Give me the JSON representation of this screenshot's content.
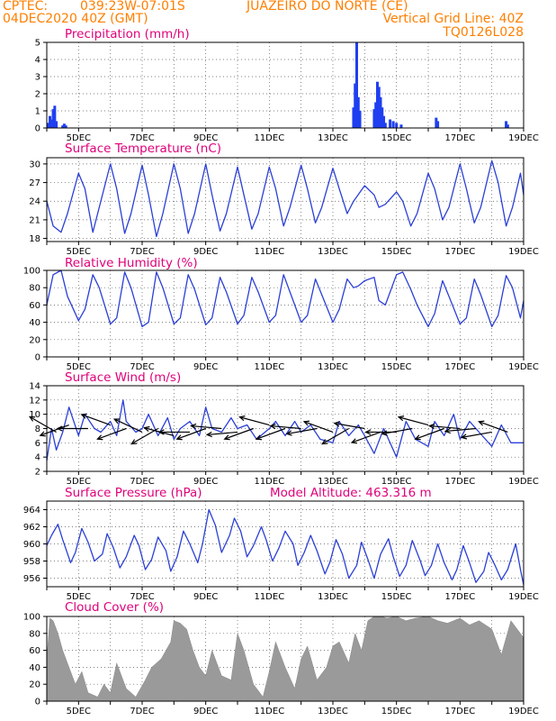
{
  "header": {
    "source": "CPTEC:",
    "coords": "039:23W-07:01S",
    "location": "JUAZEIRO DO NORTE (CE)",
    "date": "04DEC2020 40Z (GMT)",
    "grid_note": "Vertical Grid Line: 40Z",
    "code": "TQ0126L028"
  },
  "colors": {
    "header": "#ff7f00",
    "title": "#e0007a",
    "line": "#2b3fd6",
    "bar": "#1f3ff0",
    "cloud": "#9a9a9a",
    "arrow": "#000000"
  },
  "chart_data": [
    {
      "type": "bar",
      "title": "Precipitation (mm/h)",
      "xlim": [
        4,
        19
      ],
      "ylim": [
        0,
        5
      ],
      "yticks": [
        0,
        1,
        2,
        3,
        4,
        5
      ],
      "xtick_positions": [
        5,
        7,
        9,
        11,
        13,
        15,
        17,
        19
      ],
      "xticks": [
        "5DEC",
        "7DEC",
        "9DEC",
        "11DEC",
        "13DEC",
        "15DEC",
        "17DEC",
        "19DEC"
      ],
      "x": [
        4.05,
        4.1,
        4.15,
        4.2,
        4.25,
        4.3,
        4.5,
        4.55,
        4.6,
        13.65,
        13.7,
        13.75,
        13.8,
        13.85,
        14.3,
        14.35,
        14.4,
        14.45,
        14.5,
        14.55,
        14.6,
        14.65,
        14.8,
        14.9,
        15.0,
        15.15,
        16.25,
        16.3,
        18.45,
        18.5
      ],
      "values": [
        0.3,
        0.7,
        0.5,
        1.1,
        1.3,
        0.4,
        0.15,
        0.25,
        0.15,
        1.2,
        2.6,
        5.0,
        1.8,
        1.0,
        1.1,
        1.5,
        2.7,
        2.4,
        1.8,
        1.2,
        0.7,
        0.3,
        0.5,
        0.4,
        0.3,
        0.2,
        0.6,
        0.4,
        0.4,
        0.2
      ]
    },
    {
      "type": "line",
      "title": "Surface Temperature (nC)",
      "xlim": [
        4,
        19
      ],
      "ylim": [
        17.5,
        31
      ],
      "yticks": [
        18,
        21,
        24,
        27,
        30
      ],
      "xtick_positions": [
        5,
        7,
        9,
        11,
        13,
        15,
        17,
        19
      ],
      "xticks": [
        "5DEC",
        "7DEC",
        "9DEC",
        "11DEC",
        "13DEC",
        "15DEC",
        "17DEC",
        "19DEC"
      ],
      "x": [
        4.0,
        4.2,
        4.45,
        4.65,
        5.0,
        5.2,
        5.45,
        5.65,
        6.0,
        6.2,
        6.45,
        6.65,
        7.0,
        7.2,
        7.45,
        7.65,
        8.0,
        8.2,
        8.45,
        8.65,
        9.0,
        9.2,
        9.45,
        9.65,
        10.0,
        10.2,
        10.45,
        10.65,
        11.0,
        11.2,
        11.45,
        11.65,
        12.0,
        12.2,
        12.45,
        12.65,
        13.0,
        13.2,
        13.45,
        13.65,
        14.0,
        14.3,
        14.45,
        14.65,
        15.0,
        15.2,
        15.45,
        15.65,
        16.0,
        16.2,
        16.45,
        16.65,
        17.0,
        17.2,
        17.45,
        17.65,
        18.0,
        18.2,
        18.45,
        18.65,
        18.9,
        19.0
      ],
      "values": [
        24,
        20,
        19.0,
        22,
        28.5,
        26,
        19.0,
        23,
        30,
        26,
        18.8,
        22,
        29.8,
        25,
        18.3,
        22,
        30.0,
        26,
        18.8,
        22,
        30.0,
        25,
        19.2,
        22,
        29.5,
        25,
        19.5,
        22,
        29.5,
        26,
        20.0,
        23,
        29.8,
        26,
        20.5,
        23,
        29.3,
        26,
        22.0,
        24,
        26.5,
        25,
        23.0,
        23.5,
        25.5,
        24,
        20.0,
        22,
        28.5,
        26,
        21.0,
        23,
        30.0,
        26,
        20.5,
        23,
        30.5,
        27,
        20.0,
        23,
        28.5,
        25
      ]
    },
    {
      "type": "line",
      "title": "Relative Humidity (%)",
      "xlim": [
        4,
        19
      ],
      "ylim": [
        0,
        100
      ],
      "yticks": [
        0,
        20,
        40,
        60,
        80,
        100
      ],
      "xtick_positions": [
        5,
        7,
        9,
        11,
        13,
        15,
        17,
        19
      ],
      "xticks": [
        "5DEC",
        "7DEC",
        "9DEC",
        "11DEC",
        "13DEC",
        "15DEC",
        "17DEC",
        "19DEC"
      ],
      "x": [
        4.0,
        4.2,
        4.45,
        4.65,
        5.0,
        5.2,
        5.45,
        5.65,
        6.0,
        6.2,
        6.45,
        6.65,
        7.0,
        7.2,
        7.45,
        7.65,
        8.0,
        8.2,
        8.45,
        8.65,
        9.0,
        9.2,
        9.45,
        9.65,
        10.0,
        10.2,
        10.45,
        10.65,
        11.0,
        11.2,
        11.45,
        11.65,
        12.0,
        12.2,
        12.45,
        12.65,
        13.0,
        13.2,
        13.45,
        13.65,
        13.8,
        14.0,
        14.3,
        14.45,
        14.65,
        15.0,
        15.2,
        15.45,
        15.65,
        16.0,
        16.2,
        16.45,
        16.65,
        17.0,
        17.2,
        17.45,
        17.65,
        18.0,
        18.2,
        18.45,
        18.65,
        18.9,
        19.0
      ],
      "values": [
        60,
        95,
        100,
        70,
        42,
        55,
        95,
        80,
        38,
        45,
        98,
        80,
        35,
        40,
        98,
        80,
        38,
        45,
        95,
        78,
        37,
        45,
        92,
        75,
        38,
        48,
        92,
        75,
        40,
        48,
        95,
        75,
        40,
        48,
        90,
        72,
        40,
        55,
        90,
        80,
        82,
        88,
        92,
        65,
        60,
        95,
        98,
        78,
        60,
        35,
        50,
        88,
        70,
        38,
        45,
        90,
        72,
        35,
        48,
        94,
        80,
        45,
        65
      ]
    },
    {
      "type": "line",
      "title": "Surface Wind (m/s)",
      "xlim": [
        4,
        19
      ],
      "ylim": [
        2,
        14
      ],
      "yticks": [
        2,
        4,
        6,
        8,
        10,
        12,
        14
      ],
      "xtick_positions": [
        5,
        7,
        9,
        11,
        13,
        15,
        17,
        19
      ],
      "xticks": [
        "5DEC",
        "7DEC",
        "9DEC",
        "11DEC",
        "13DEC",
        "15DEC",
        "17DEC",
        "19DEC"
      ],
      "x": [
        4.0,
        4.15,
        4.3,
        4.5,
        4.7,
        5.0,
        5.2,
        5.5,
        5.7,
        6.0,
        6.2,
        6.4,
        6.5,
        6.8,
        7.0,
        7.2,
        7.5,
        7.8,
        8.0,
        8.2,
        8.5,
        8.8,
        9.0,
        9.2,
        9.5,
        9.8,
        10.0,
        10.3,
        10.6,
        11.0,
        11.2,
        11.5,
        11.8,
        12.0,
        12.3,
        12.6,
        13.0,
        13.2,
        13.5,
        13.8,
        14.0,
        14.3,
        14.6,
        15.0,
        15.3,
        15.6,
        16.0,
        16.2,
        16.5,
        16.8,
        17.0,
        17.3,
        17.6,
        18.0,
        18.3,
        18.6,
        19.0
      ],
      "values": [
        3.5,
        8.0,
        5.0,
        7.5,
        11.0,
        7.0,
        10.0,
        8.0,
        7.5,
        9.0,
        7.0,
        12.0,
        9.0,
        7.5,
        8.0,
        10.0,
        7.0,
        9.5,
        6.5,
        8.0,
        9.0,
        7.0,
        11.0,
        8.0,
        7.5,
        9.5,
        8.0,
        8.5,
        6.5,
        8.0,
        9.0,
        7.0,
        9.0,
        7.5,
        8.5,
        6.5,
        6.0,
        9.0,
        7.0,
        8.5,
        7.0,
        4.5,
        8.0,
        4.0,
        9.0,
        6.5,
        5.5,
        9.0,
        7.0,
        10.0,
        6.5,
        9.0,
        7.5,
        5.5,
        8.5,
        6.0,
        6.0
      ],
      "arrows": [
        {
          "x": 4.3,
          "speed": 7.5,
          "angle": 150
        },
        {
          "x": 4.7,
          "speed": 8.5,
          "angle": 200
        },
        {
          "x": 5.3,
          "speed": 8.0,
          "angle": 180
        },
        {
          "x": 6.0,
          "speed": 8.5,
          "angle": 160
        },
        {
          "x": 6.5,
          "speed": 8.0,
          "angle": 200
        },
        {
          "x": 7.0,
          "speed": 7.5,
          "angle": 155
        },
        {
          "x": 7.5,
          "speed": 8.0,
          "angle": 210
        },
        {
          "x": 8.0,
          "speed": 7.0,
          "angle": 165
        },
        {
          "x": 8.5,
          "speed": 7.5,
          "angle": 180
        },
        {
          "x": 9.0,
          "speed": 8.0,
          "angle": 200
        },
        {
          "x": 9.5,
          "speed": 8.0,
          "angle": 175
        },
        {
          "x": 10.0,
          "speed": 7.5,
          "angle": 185
        },
        {
          "x": 10.5,
          "speed": 8.0,
          "angle": 200
        },
        {
          "x": 11.0,
          "speed": 8.5,
          "angle": 165
        },
        {
          "x": 11.5,
          "speed": 8.0,
          "angle": 200
        },
        {
          "x": 12.0,
          "speed": 8.0,
          "angle": 175
        },
        {
          "x": 12.5,
          "speed": 8.0,
          "angle": 190
        },
        {
          "x": 13.0,
          "speed": 7.5,
          "angle": 160
        },
        {
          "x": 13.5,
          "speed": 8.0,
          "angle": 210
        },
        {
          "x": 14.0,
          "speed": 8.0,
          "angle": 170
        },
        {
          "x": 14.5,
          "speed": 7.5,
          "angle": 200
        },
        {
          "x": 15.0,
          "speed": 7.5,
          "angle": 180
        },
        {
          "x": 15.5,
          "speed": 8.0,
          "angle": 190
        },
        {
          "x": 16.0,
          "speed": 8.5,
          "angle": 165
        },
        {
          "x": 16.5,
          "speed": 8.0,
          "angle": 200
        },
        {
          "x": 17.0,
          "speed": 8.0,
          "angle": 175
        },
        {
          "x": 17.5,
          "speed": 8.0,
          "angle": 185
        },
        {
          "x": 18.0,
          "speed": 7.5,
          "angle": 190
        },
        {
          "x": 18.5,
          "speed": 7.5,
          "angle": 160
        }
      ]
    },
    {
      "type": "line",
      "title": "Surface Pressure (hPa)",
      "annotation": "Model Altitude: 463.316 m",
      "xlim": [
        4,
        19
      ],
      "ylim": [
        955,
        965
      ],
      "yticks": [
        956,
        958,
        960,
        962,
        964
      ],
      "xtick_positions": [
        5,
        7,
        9,
        11,
        13,
        15,
        17,
        19
      ],
      "xticks": [
        "5DEC",
        "7DEC",
        "9DEC",
        "11DEC",
        "13DEC",
        "15DEC",
        "17DEC",
        "19DEC"
      ],
      "x": [
        4.0,
        4.15,
        4.35,
        4.5,
        4.75,
        4.9,
        5.1,
        5.3,
        5.5,
        5.75,
        5.9,
        6.1,
        6.3,
        6.5,
        6.75,
        6.9,
        7.1,
        7.3,
        7.5,
        7.75,
        7.9,
        8.1,
        8.3,
        8.5,
        8.75,
        8.9,
        9.1,
        9.3,
        9.5,
        9.75,
        9.9,
        10.1,
        10.3,
        10.5,
        10.75,
        10.9,
        11.1,
        11.3,
        11.5,
        11.75,
        11.9,
        12.1,
        12.3,
        12.5,
        12.75,
        12.9,
        13.1,
        13.3,
        13.5,
        13.75,
        13.9,
        14.1,
        14.3,
        14.5,
        14.75,
        14.9,
        15.1,
        15.3,
        15.5,
        15.75,
        15.9,
        16.1,
        16.3,
        16.5,
        16.75,
        16.9,
        17.1,
        17.3,
        17.5,
        17.75,
        17.9,
        18.1,
        18.3,
        18.5,
        18.75,
        18.9,
        19.0
      ],
      "values": [
        959.8,
        961.0,
        962.3,
        960.5,
        957.8,
        959.0,
        961.8,
        960.2,
        958.0,
        958.8,
        961.2,
        959.5,
        957.2,
        958.5,
        961.0,
        959.8,
        957.0,
        958.2,
        960.8,
        959.2,
        956.8,
        958.5,
        961.5,
        960.0,
        957.8,
        960.0,
        964.0,
        962.2,
        959.0,
        961.0,
        963.0,
        961.5,
        958.5,
        959.8,
        962.0,
        960.5,
        958.0,
        959.5,
        961.5,
        960.0,
        957.5,
        959.0,
        961.0,
        959.2,
        956.5,
        957.8,
        960.5,
        958.8,
        956.0,
        957.5,
        960.2,
        958.2,
        956.0,
        958.8,
        960.6,
        958.5,
        956.2,
        957.5,
        960.4,
        958.0,
        956.3,
        957.5,
        960.0,
        957.8,
        955.8,
        957.0,
        959.8,
        957.8,
        955.5,
        956.8,
        959.0,
        957.5,
        955.8,
        957.0,
        960.0,
        957.0,
        955.2
      ]
    },
    {
      "type": "area",
      "title": "Cloud Cover (%)",
      "xlim": [
        4,
        19
      ],
      "ylim": [
        0,
        100
      ],
      "yticks": [
        0,
        20,
        40,
        60,
        80,
        100
      ],
      "xtick_positions": [
        5,
        7,
        9,
        11,
        13,
        15,
        17,
        19
      ],
      "xticks": [
        "5DEC",
        "7DEC",
        "9DEC",
        "11DEC",
        "13DEC",
        "15DEC",
        "17DEC",
        "19DEC"
      ],
      "x": [
        4.0,
        4.1,
        4.2,
        4.35,
        4.5,
        4.7,
        4.9,
        5.1,
        5.3,
        5.6,
        5.8,
        6.0,
        6.2,
        6.5,
        6.8,
        7.1,
        7.3,
        7.6,
        7.9,
        8.0,
        8.2,
        8.4,
        8.6,
        8.8,
        9.0,
        9.2,
        9.5,
        9.8,
        10.0,
        10.2,
        10.5,
        10.8,
        11.0,
        11.2,
        11.5,
        11.8,
        12.0,
        12.2,
        12.5,
        12.8,
        13.0,
        13.2,
        13.5,
        13.7,
        13.9,
        14.1,
        14.3,
        14.5,
        14.7,
        15.0,
        15.3,
        15.6,
        16.0,
        16.3,
        16.6,
        17.0,
        17.3,
        17.6,
        18.0,
        18.3,
        18.6,
        18.8,
        19.0
      ],
      "values": [
        50,
        98,
        95,
        80,
        60,
        40,
        20,
        35,
        10,
        5,
        20,
        10,
        45,
        15,
        5,
        25,
        40,
        50,
        70,
        95,
        92,
        85,
        60,
        40,
        30,
        60,
        30,
        25,
        80,
        60,
        20,
        5,
        35,
        70,
        40,
        15,
        50,
        65,
        25,
        40,
        65,
        70,
        45,
        80,
        60,
        95,
        100,
        100,
        98,
        100,
        95,
        98,
        100,
        95,
        92,
        98,
        90,
        95,
        85,
        55,
        95,
        85,
        75
      ]
    }
  ]
}
